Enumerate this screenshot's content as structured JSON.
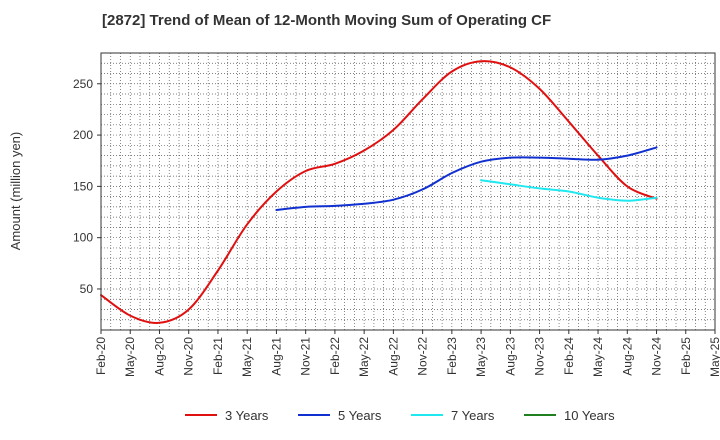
{
  "chart_data": {
    "type": "line",
    "title": "[2872]  Trend of Mean of 12-Month Moving Sum of Operating CF",
    "xlabel": "",
    "ylabel": "Amount (million yen)",
    "ylim": [
      10,
      280
    ],
    "yticks": [
      50,
      100,
      150,
      200,
      250
    ],
    "x_categories": [
      "Feb-20",
      "May-20",
      "Aug-20",
      "Nov-20",
      "Feb-21",
      "May-21",
      "Aug-21",
      "Nov-21",
      "Feb-22",
      "May-22",
      "Aug-22",
      "Nov-22",
      "Feb-23",
      "May-23",
      "Aug-23",
      "Nov-23",
      "Feb-24",
      "May-24",
      "Aug-24",
      "Nov-24",
      "Feb-25",
      "May-25"
    ],
    "grid": true,
    "legend_position": "bottom",
    "series": [
      {
        "name": "3 Years",
        "color": "#e01010",
        "values": [
          44,
          24,
          17,
          30,
          68,
          113,
          145,
          165,
          172,
          185,
          205,
          235,
          262,
          272,
          266,
          245,
          213,
          180,
          150,
          138
        ]
      },
      {
        "name": "5 Years",
        "color": "#1030d0",
        "start_index": 6,
        "values": [
          127,
          130,
          131,
          133,
          137,
          147,
          163,
          174,
          178,
          178,
          177,
          176,
          180,
          188
        ]
      },
      {
        "name": "7 Years",
        "color": "#20e8f0",
        "start_index": 13,
        "values": [
          156,
          152,
          148,
          145,
          139,
          136,
          139
        ]
      },
      {
        "name": "10 Years",
        "color": "#208020",
        "values": []
      }
    ]
  }
}
